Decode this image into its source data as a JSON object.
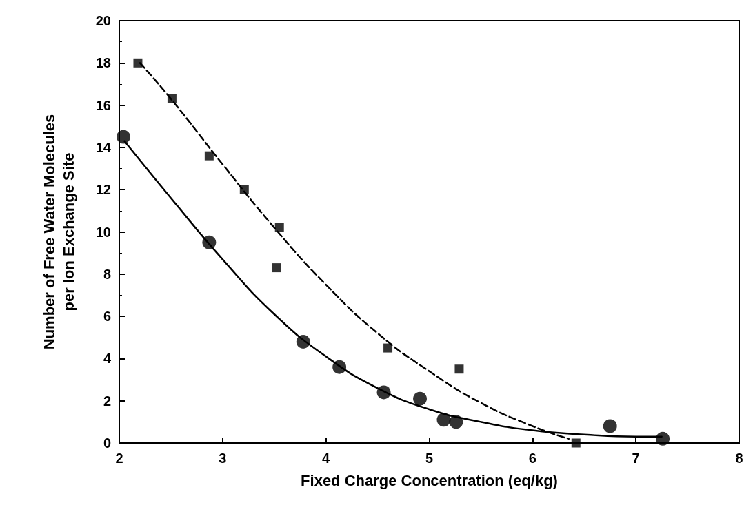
{
  "chart_data": {
    "type": "scatter",
    "xlabel": "Fixed Charge Concentration (eq/kg)",
    "ylabel": "Number of Free Water Molecules\nper Ion Exchange Site",
    "xlim": [
      2,
      8
    ],
    "xticks": [
      2,
      3,
      4,
      5,
      6,
      7,
      8
    ],
    "ylim": [
      0,
      20
    ],
    "yticks": [
      0,
      2,
      4,
      6,
      8,
      10,
      12,
      14,
      16,
      18,
      20
    ],
    "grid": false,
    "series": [
      {
        "marker": "circle",
        "color": "#000000",
        "x": [
          2.04,
          2.87,
          3.78,
          4.13,
          4.56,
          4.91,
          5.14,
          5.26,
          6.75,
          7.26
        ],
        "values": [
          14.5,
          9.5,
          4.8,
          3.6,
          2.4,
          2.1,
          1.1,
          1.0,
          0.8,
          0.2
        ]
      },
      {
        "marker": "square",
        "color": "#000000",
        "x": [
          2.18,
          2.51,
          2.87,
          3.21,
          3.55,
          3.52,
          4.6,
          5.29,
          6.42
        ],
        "values": [
          18,
          16.3,
          13.6,
          12.0,
          10.2,
          8.3,
          4.5,
          3.5,
          0
        ]
      },
      {
        "type": "line",
        "marker": "none",
        "line_style": "solid",
        "color": "#000000",
        "x": [
          2.05,
          2.5,
          3,
          3.5,
          4,
          4.5,
          5,
          5.5,
          6,
          6.5,
          7,
          7.25
        ],
        "values": [
          14.3,
          11.6,
          8.7,
          6.1,
          4.1,
          2.6,
          1.6,
          1.0,
          0.6,
          0.4,
          0.3,
          0.3
        ]
      },
      {
        "type": "line",
        "marker": "none",
        "line_style": "dashed",
        "color": "#000000",
        "x": [
          2.2,
          2.5,
          3,
          3.5,
          4,
          4.5,
          5,
          5.5,
          6,
          6.35
        ],
        "values": [
          18,
          16.3,
          13.2,
          10.2,
          7.5,
          5.2,
          3.4,
          1.9,
          0.8,
          0.2
        ]
      }
    ]
  }
}
